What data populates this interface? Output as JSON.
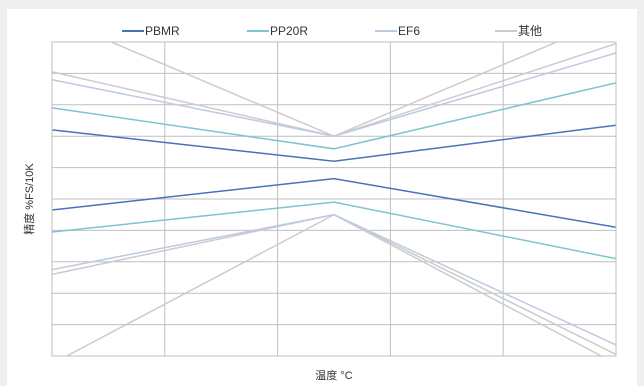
{
  "chart_data": {
    "type": "line",
    "title": "",
    "xlabel": "温度 °C",
    "ylabel": "精度 %FS/10K",
    "x": [
      0,
      1,
      2
    ],
    "xlim": [
      0,
      2
    ],
    "ylim": [
      -10,
      10
    ],
    "grid": {
      "horizontal": true,
      "vertical": true,
      "h_lines": 9,
      "v_lines": 4
    },
    "legend_position": "top",
    "series": [
      {
        "name": "PBMR",
        "color": "#4a72b8",
        "lines": [
          [
            4.4,
            2.4,
            4.7
          ],
          [
            -0.7,
            1.3,
            -1.8
          ]
        ]
      },
      {
        "name": "PP20R",
        "color": "#7fc3ce",
        "lines": [
          [
            5.8,
            3.2,
            7.4
          ],
          [
            -2.1,
            -0.2,
            -3.8
          ]
        ]
      },
      {
        "name": "EF6",
        "color": "#bccce0",
        "lines": [
          [
            7.6,
            4.0,
            9.3
          ],
          [
            -4.5,
            -1.0,
            -9.3
          ]
        ]
      },
      {
        "name": "其他",
        "color": "#cccccc",
        "lines": [
          [
            8.1,
            4.0,
            9.9
          ],
          [
            -4.8,
            -1.0,
            -9.9
          ],
          [
            11.6,
            4.0,
            11.6
          ],
          [
            -10.5,
            -1.0,
            -10.5
          ]
        ]
      }
    ]
  }
}
